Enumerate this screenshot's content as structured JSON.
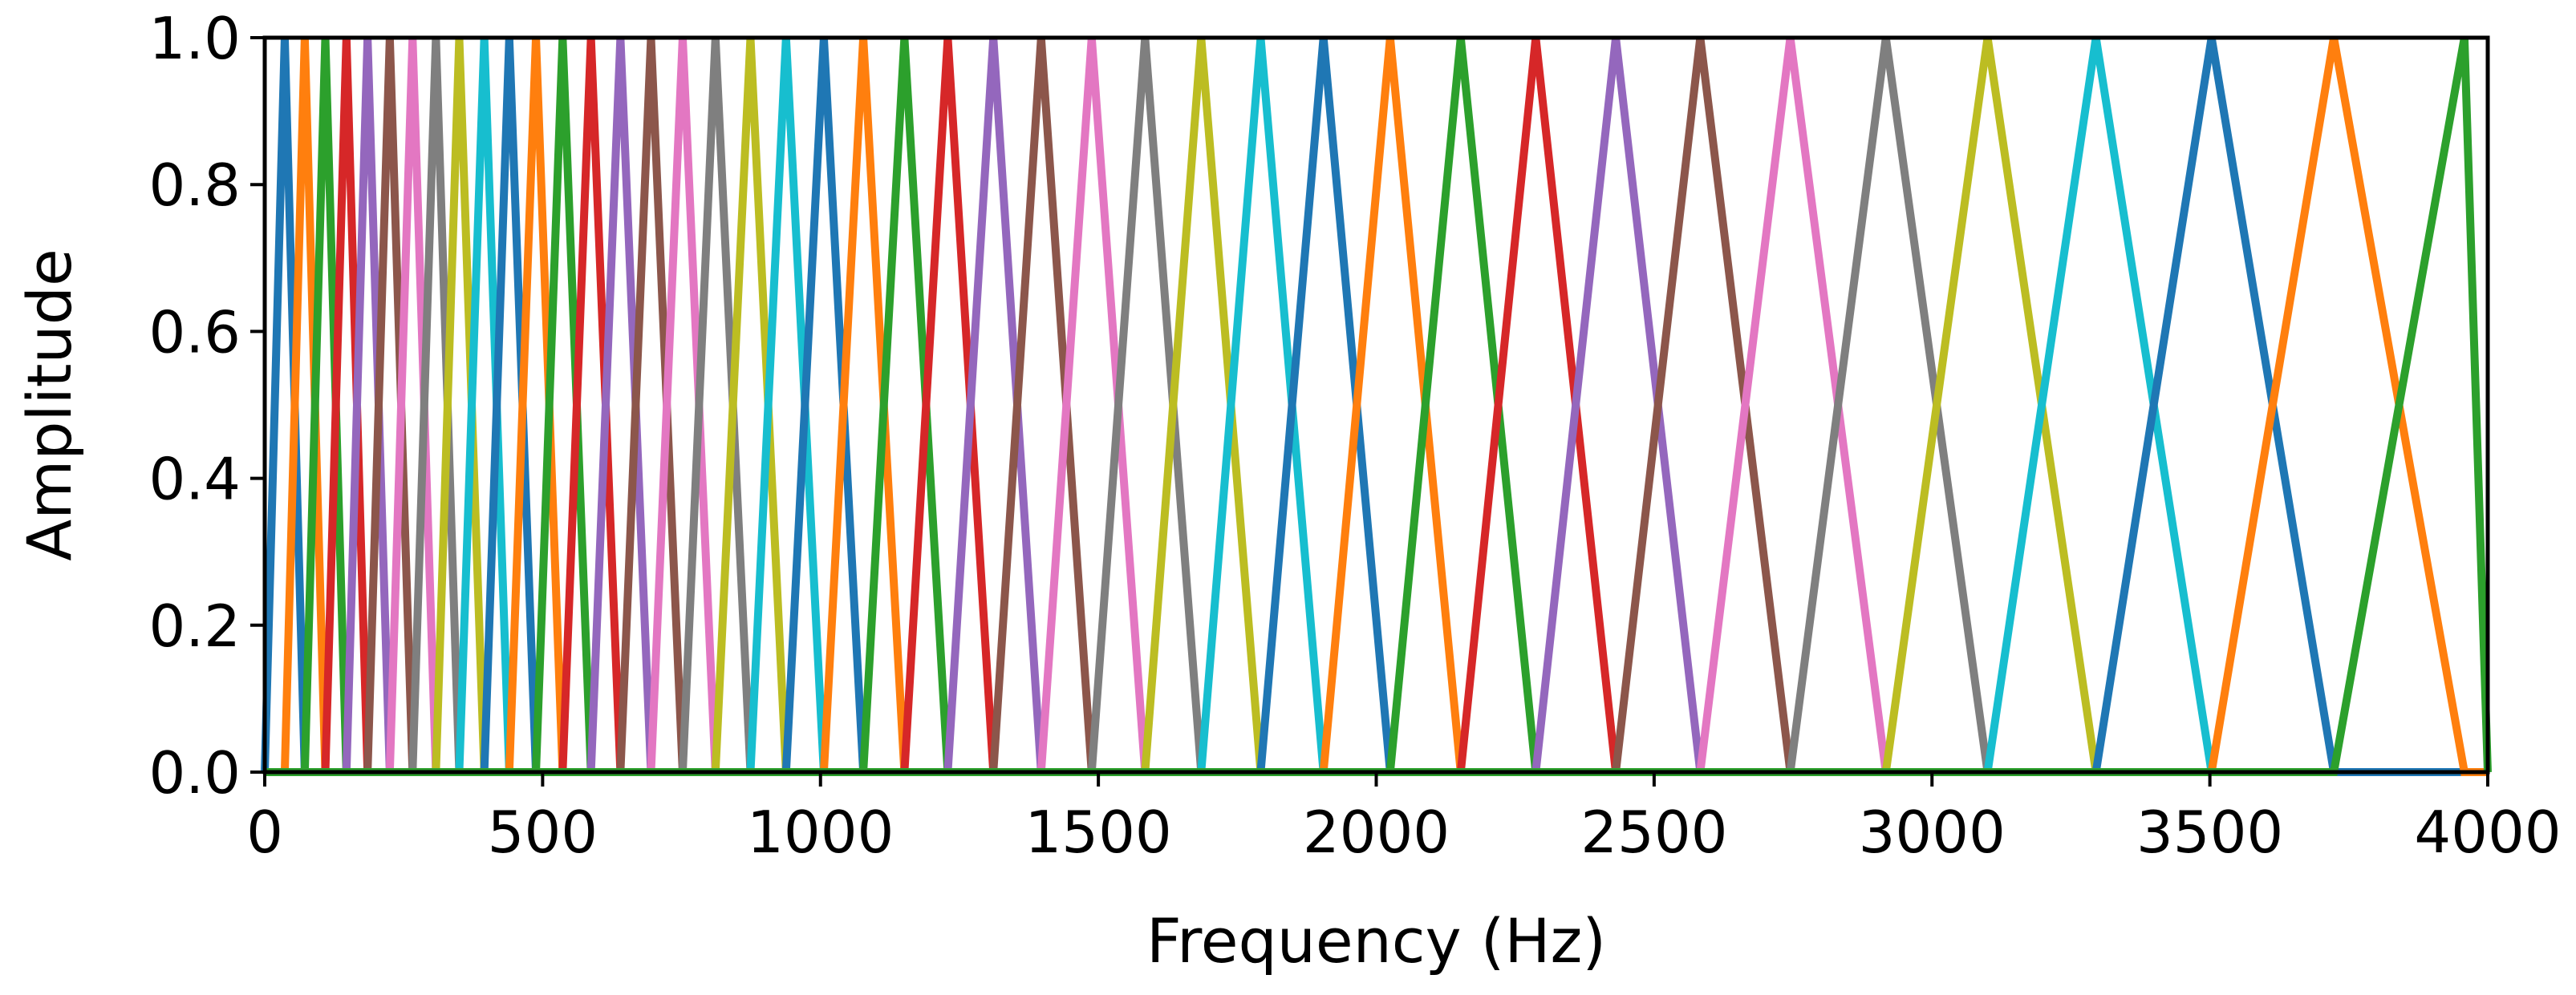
{
  "chart_data": {
    "type": "line",
    "title": "",
    "xlabel": "Frequency (Hz)",
    "ylabel": "Amplitude",
    "xlim": [
      0,
      4000
    ],
    "ylim": [
      0,
      1.0
    ],
    "x_ticks": [
      "0",
      "500",
      "1000",
      "1500",
      "2000",
      "2500",
      "3000",
      "3500",
      "4000"
    ],
    "y_ticks": [
      "0.0",
      "0.2",
      "0.4",
      "0.6",
      "0.8",
      "1.0"
    ],
    "grid": false,
    "legend": "none",
    "series_colors": [
      "#1f77b4",
      "#ff7f0e",
      "#2ca02c",
      "#d62728",
      "#9467bd",
      "#8c564b",
      "#e377c2",
      "#7f7f7f",
      "#bcbd22",
      "#17becf"
    ],
    "filter_peaks_hz": [
      0,
      36,
      72,
      109,
      147,
      185,
      225,
      266,
      308,
      350,
      395,
      440,
      488,
      536,
      587,
      640,
      695,
      752,
      811,
      874,
      938,
      1006,
      1077,
      1151,
      1229,
      1311,
      1397,
      1488,
      1584,
      1685,
      1792,
      1905,
      2025,
      2152,
      2287,
      2431,
      2583,
      2745,
      2917,
      3100,
      3295,
      3503,
      3723,
      3958,
      4000
    ]
  }
}
